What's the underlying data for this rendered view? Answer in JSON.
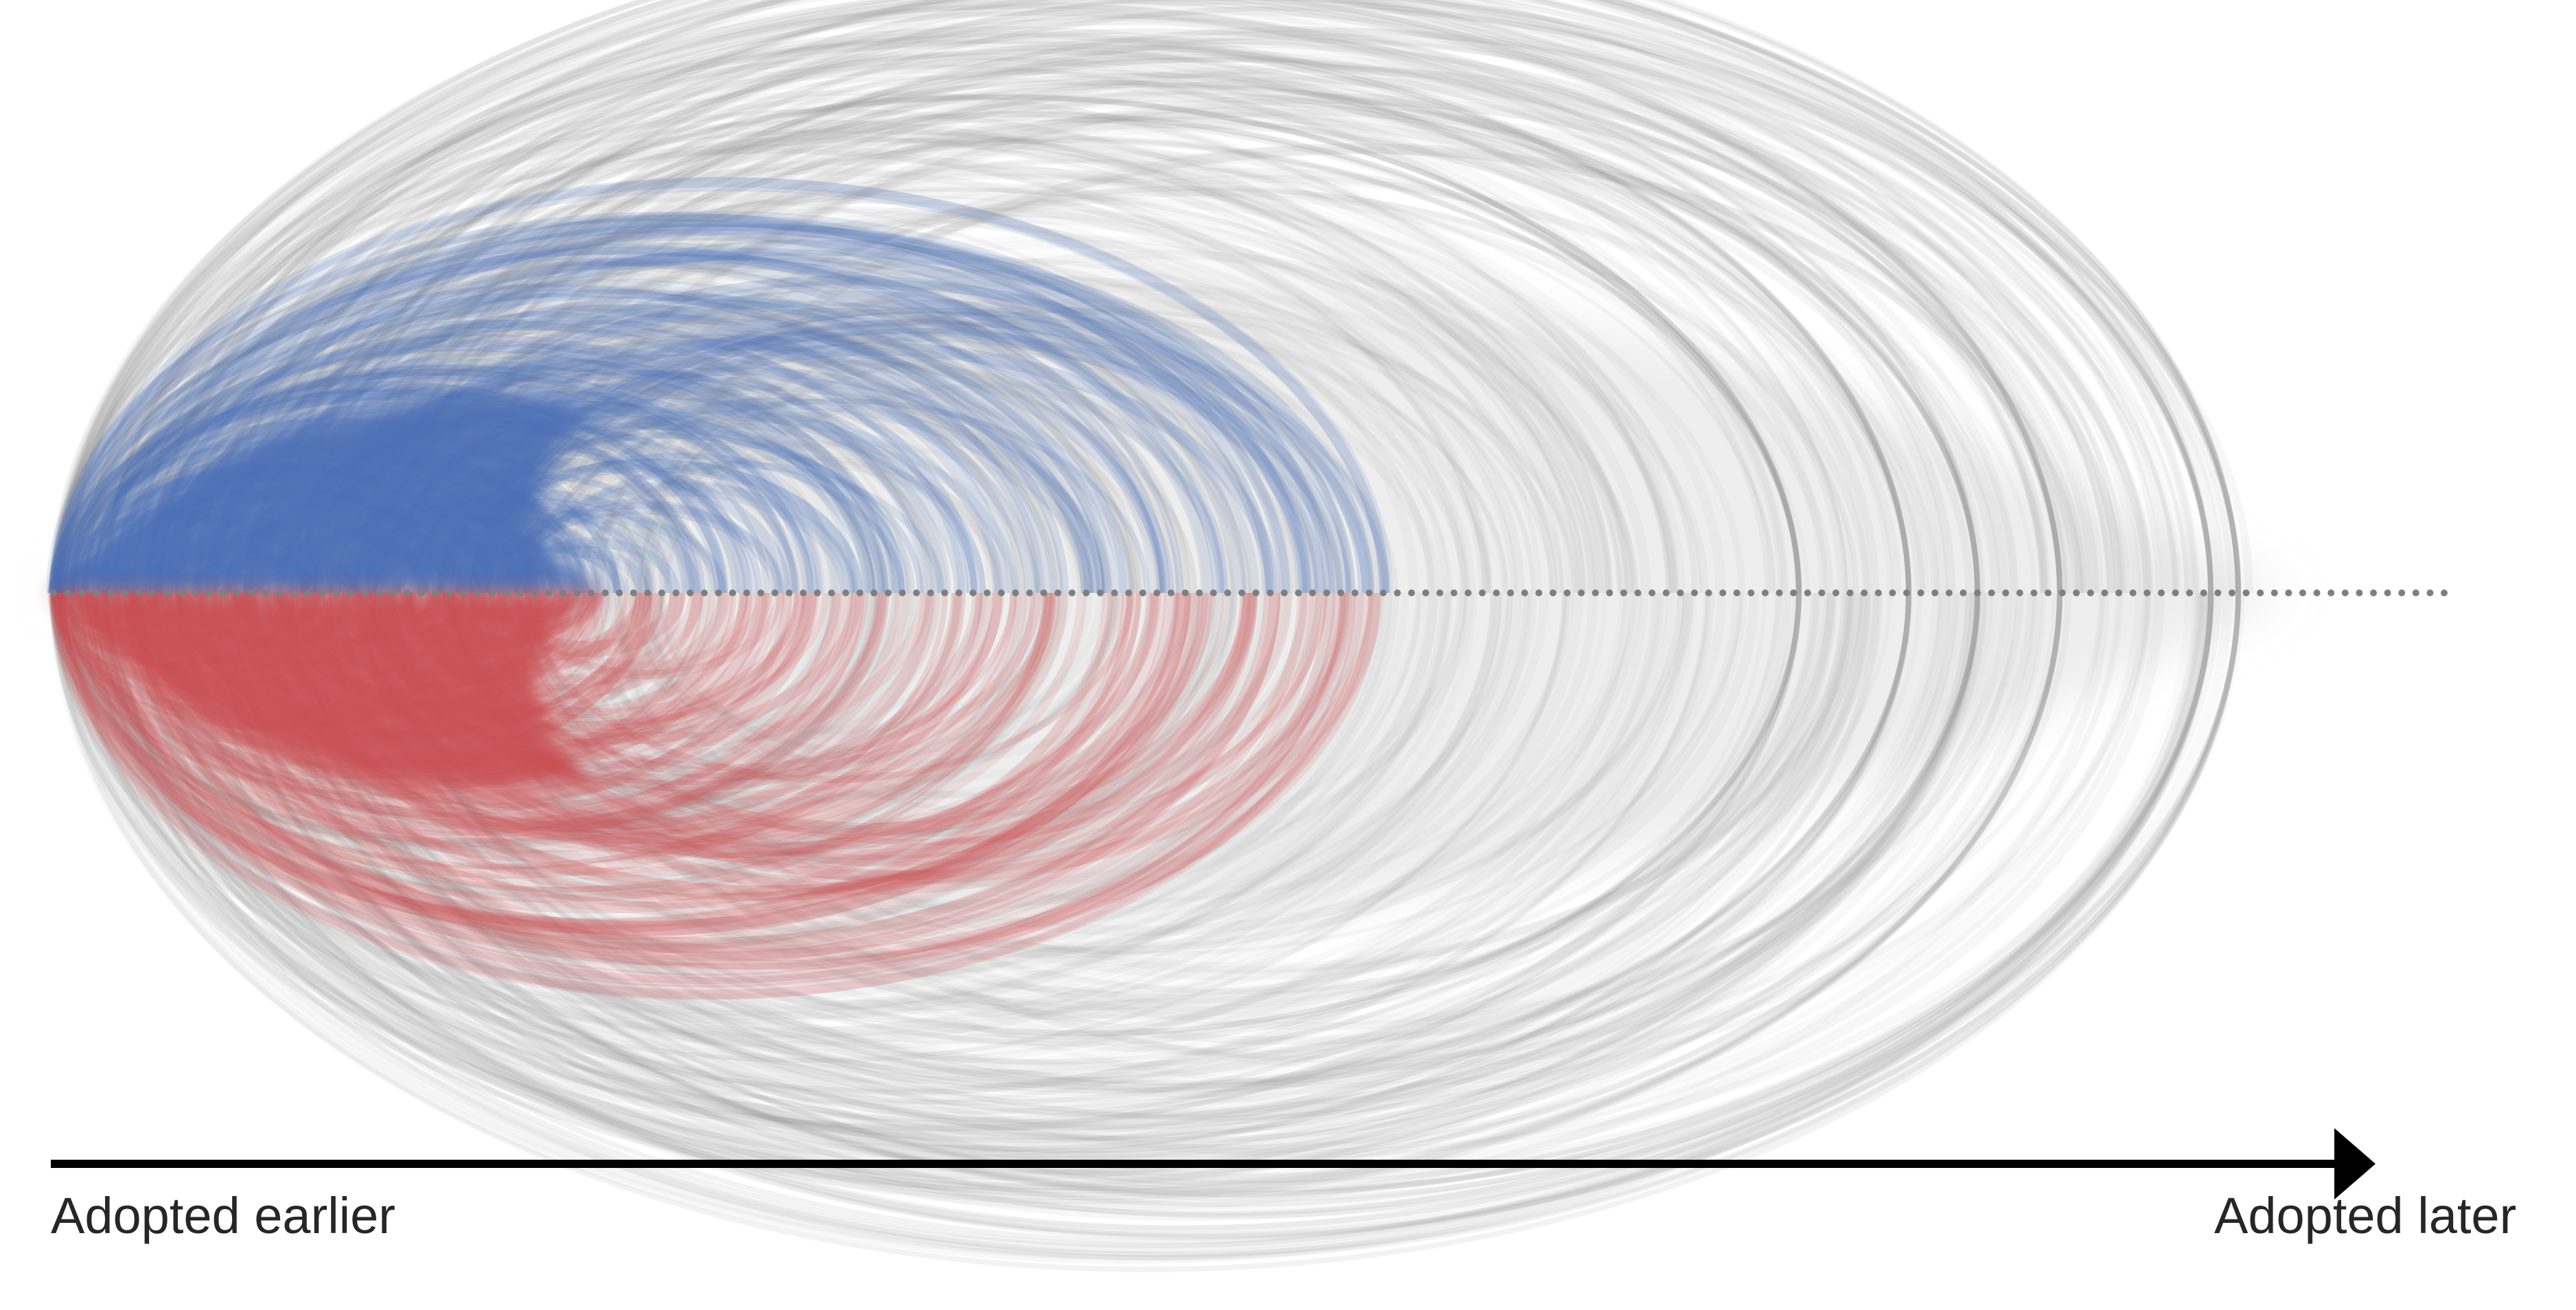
{
  "figure": {
    "axis": {
      "label_start": "Adopted earlier",
      "label_end": "Adopted later"
    },
    "colors": {
      "upper_highlight": "#4a6fb5",
      "lower_highlight": "#c94f53",
      "background_arcs": "#9a9a9a",
      "nodes": "#7f7f7f",
      "axis_line": "#000000",
      "text": "#262626"
    },
    "node_count": 170,
    "arcs_above": "blue highlighted connections among early adopters, grey otherwise",
    "arcs_below": "red highlighted connections among early adopters, grey otherwise"
  }
}
